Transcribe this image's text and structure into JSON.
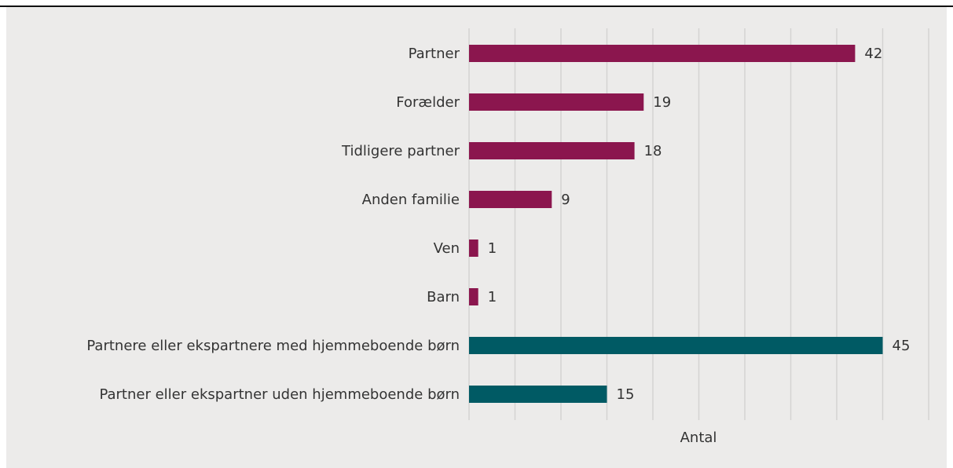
{
  "chart_data": {
    "type": "bar",
    "orientation": "horizontal",
    "categories": [
      "Partner",
      "Forælder",
      "Tidligere partner",
      "Anden familie",
      "Ven",
      "Barn",
      "Partnere eller ekspartnere med hjemmeboende børn",
      "Partner eller ekspartner uden hjemmeboende børn"
    ],
    "values": [
      42,
      19,
      18,
      9,
      1,
      1,
      45,
      15
    ],
    "colors": [
      "#8b164e",
      "#8b164e",
      "#8b164e",
      "#8b164e",
      "#8b164e",
      "#8b164e",
      "#005a64",
      "#005a64"
    ],
    "xlabel": "Antal",
    "xlim": [
      0,
      50
    ],
    "xticks": [
      0,
      5,
      10,
      15,
      20,
      25,
      30,
      35,
      40,
      45,
      50
    ],
    "grid": true
  }
}
